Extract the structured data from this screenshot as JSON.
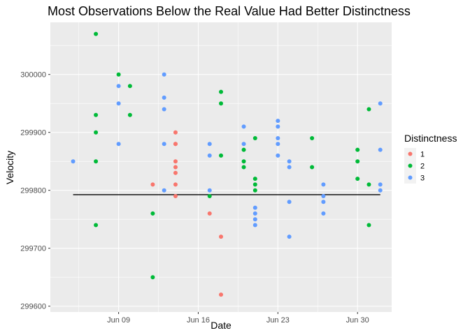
{
  "chart_data": {
    "type": "scatter",
    "title": "Most Observations Below the Real Value Had Better Distinctness",
    "xlabel": "Date",
    "ylabel": "Velocity",
    "x_ticks": [
      {
        "value": "1879-06-09",
        "label": "Jun 09"
      },
      {
        "value": "1879-06-16",
        "label": "Jun 16"
      },
      {
        "value": "1879-06-23",
        "label": "Jun 23"
      },
      {
        "value": "1879-06-30",
        "label": "Jun 30"
      }
    ],
    "y_ticks": [
      {
        "value": 299600,
        "label": "299600"
      },
      {
        "value": 299700,
        "label": "299700"
      },
      {
        "value": 299800,
        "label": "299800"
      },
      {
        "value": 299900,
        "label": "299900"
      },
      {
        "value": 300000,
        "label": "300000"
      }
    ],
    "xlim": [
      "1879-06-03",
      "1879-07-03"
    ],
    "ylim": [
      299590,
      300090
    ],
    "grid": true,
    "reference_line": {
      "y": 299792.5,
      "x_from": "1879-06-05",
      "x_to": "1879-07-02"
    },
    "legend": {
      "title": "Distinctness",
      "position": "right"
    },
    "series": [
      {
        "name": "1",
        "color": "#F8766D",
        "points": [
          {
            "x": "1879-06-12",
            "y": 299810
          },
          {
            "x": "1879-06-14",
            "y": 299900
          },
          {
            "x": "1879-06-14",
            "y": 299880
          },
          {
            "x": "1879-06-14",
            "y": 299880
          },
          {
            "x": "1879-06-14",
            "y": 299850
          },
          {
            "x": "1879-06-14",
            "y": 299840
          },
          {
            "x": "1879-06-14",
            "y": 299830
          },
          {
            "x": "1879-06-14",
            "y": 299810
          },
          {
            "x": "1879-06-14",
            "y": 299790
          },
          {
            "x": "1879-06-17",
            "y": 299760
          },
          {
            "x": "1879-06-18",
            "y": 299720
          },
          {
            "x": "1879-06-18",
            "y": 299620
          }
        ]
      },
      {
        "name": "2",
        "color": "#00BA38",
        "points": [
          {
            "x": "1879-06-07",
            "y": 300070
          },
          {
            "x": "1879-06-07",
            "y": 299930
          },
          {
            "x": "1879-06-07",
            "y": 299900
          },
          {
            "x": "1879-06-07",
            "y": 299850
          },
          {
            "x": "1879-06-07",
            "y": 299740
          },
          {
            "x": "1879-06-09",
            "y": 300000
          },
          {
            "x": "1879-06-10",
            "y": 299980
          },
          {
            "x": "1879-06-10",
            "y": 299930
          },
          {
            "x": "1879-06-12",
            "y": 299760
          },
          {
            "x": "1879-06-12",
            "y": 299650
          },
          {
            "x": "1879-06-17",
            "y": 299790
          },
          {
            "x": "1879-06-18",
            "y": 299970
          },
          {
            "x": "1879-06-18",
            "y": 299950
          },
          {
            "x": "1879-06-18",
            "y": 299860
          },
          {
            "x": "1879-06-20",
            "y": 299870
          },
          {
            "x": "1879-06-20",
            "y": 299850
          },
          {
            "x": "1879-06-20",
            "y": 299840
          },
          {
            "x": "1879-06-21",
            "y": 299890
          },
          {
            "x": "1879-06-21",
            "y": 299820
          },
          {
            "x": "1879-06-21",
            "y": 299810
          },
          {
            "x": "1879-06-21",
            "y": 299800
          },
          {
            "x": "1879-06-26",
            "y": 299890
          },
          {
            "x": "1879-06-26",
            "y": 299840
          },
          {
            "x": "1879-06-30",
            "y": 299870
          },
          {
            "x": "1879-06-30",
            "y": 299850
          },
          {
            "x": "1879-06-30",
            "y": 299820
          },
          {
            "x": "1879-07-01",
            "y": 299940
          },
          {
            "x": "1879-07-01",
            "y": 299810
          },
          {
            "x": "1879-07-01",
            "y": 299740
          }
        ]
      },
      {
        "name": "3",
        "color": "#619CFF",
        "points": [
          {
            "x": "1879-06-05",
            "y": 299850
          },
          {
            "x": "1879-06-09",
            "y": 299980
          },
          {
            "x": "1879-06-09",
            "y": 299950
          },
          {
            "x": "1879-06-09",
            "y": 299880
          },
          {
            "x": "1879-06-13",
            "y": 300000
          },
          {
            "x": "1879-06-13",
            "y": 299960
          },
          {
            "x": "1879-06-13",
            "y": 299940
          },
          {
            "x": "1879-06-13",
            "y": 299880
          },
          {
            "x": "1879-06-13",
            "y": 299800
          },
          {
            "x": "1879-06-17",
            "y": 299880
          },
          {
            "x": "1879-06-17",
            "y": 299860
          },
          {
            "x": "1879-06-17",
            "y": 299800
          },
          {
            "x": "1879-06-20",
            "y": 299910
          },
          {
            "x": "1879-06-20",
            "y": 299880
          },
          {
            "x": "1879-06-21",
            "y": 299770
          },
          {
            "x": "1879-06-21",
            "y": 299760
          },
          {
            "x": "1879-06-21",
            "y": 299750
          },
          {
            "x": "1879-06-21",
            "y": 299740
          },
          {
            "x": "1879-06-23",
            "y": 299920
          },
          {
            "x": "1879-06-23",
            "y": 299910
          },
          {
            "x": "1879-06-23",
            "y": 299890
          },
          {
            "x": "1879-06-23",
            "y": 299880
          },
          {
            "x": "1879-06-23",
            "y": 299860
          },
          {
            "x": "1879-06-24",
            "y": 299850
          },
          {
            "x": "1879-06-24",
            "y": 299840
          },
          {
            "x": "1879-06-24",
            "y": 299780
          },
          {
            "x": "1879-06-24",
            "y": 299720
          },
          {
            "x": "1879-06-27",
            "y": 299810
          },
          {
            "x": "1879-06-27",
            "y": 299790
          },
          {
            "x": "1879-06-27",
            "y": 299780
          },
          {
            "x": "1879-06-27",
            "y": 299760
          },
          {
            "x": "1879-07-02",
            "y": 299950
          },
          {
            "x": "1879-07-02",
            "y": 299870
          },
          {
            "x": "1879-07-02",
            "y": 299810
          },
          {
            "x": "1879-07-02",
            "y": 299800
          }
        ]
      }
    ]
  }
}
